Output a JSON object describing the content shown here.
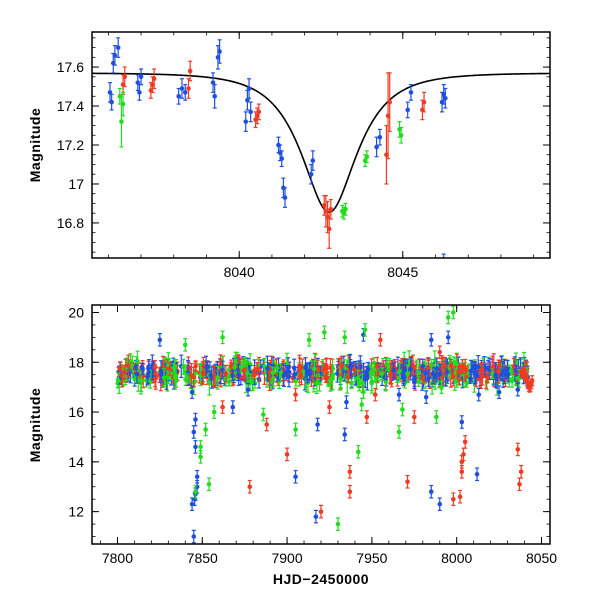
{
  "colors": {
    "blue": "#1f4fe0",
    "red": "#f03a23",
    "green": "#22dd1f",
    "model": "#000000"
  },
  "chart_data": [
    {
      "type": "scatter",
      "panel": "top",
      "xlabel": "",
      "ylabel": "Magnitude",
      "xlim": [
        8035.5,
        8049.5
      ],
      "ylim": [
        17.78,
        16.62
      ],
      "y_inverted": true,
      "x_ticks": [
        8040,
        8045
      ],
      "x_tick_labels": [
        "8040",
        "8045"
      ],
      "y_ticks": [
        16.8,
        17.0,
        17.2,
        17.4,
        17.6
      ],
      "y_tick_labels": [
        "16.8",
        "17",
        "17.2",
        "17.4",
        "17.6"
      ],
      "model_curve": {
        "baseline": 17.57,
        "peak_mag": 16.855,
        "t0": 8042.75,
        "tE": 1.35
      },
      "series": [
        {
          "color": "blue",
          "points": [
            [
              8036.05,
              17.47,
              0.05
            ],
            [
              8036.1,
              17.42,
              0.04
            ],
            [
              8036.15,
              17.62,
              0.05
            ],
            [
              8036.2,
              17.66,
              0.05
            ],
            [
              8036.3,
              17.7,
              0.05
            ],
            [
              8036.9,
              17.52,
              0.04
            ],
            [
              8036.95,
              17.47,
              0.04
            ],
            [
              8037.0,
              17.55,
              0.04
            ],
            [
              8038.15,
              17.45,
              0.04
            ],
            [
              8038.25,
              17.49,
              0.05
            ],
            [
              8038.35,
              17.47,
              0.04
            ],
            [
              8039.2,
              17.52,
              0.05
            ],
            [
              8039.25,
              17.45,
              0.06
            ],
            [
              8039.35,
              17.65,
              0.06
            ],
            [
              8039.4,
              17.68,
              0.06
            ],
            [
              8040.2,
              17.32,
              0.05
            ],
            [
              8040.25,
              17.43,
              0.05
            ],
            [
              8040.3,
              17.49,
              0.05
            ],
            [
              8040.35,
              17.37,
              0.05
            ],
            [
              8041.2,
              17.2,
              0.04
            ],
            [
              8041.25,
              17.16,
              0.04
            ],
            [
              8041.3,
              17.13,
              0.04
            ],
            [
              8041.35,
              16.98,
              0.05
            ],
            [
              8041.4,
              16.93,
              0.05
            ],
            [
              8042.2,
              17.05,
              0.05
            ],
            [
              8042.25,
              17.12,
              0.05
            ],
            [
              8044.2,
              17.19,
              0.05
            ],
            [
              8044.3,
              17.24,
              0.04
            ],
            [
              8045.15,
              17.38,
              0.04
            ],
            [
              8045.25,
              17.47,
              0.04
            ],
            [
              8046.2,
              17.42,
              0.05
            ],
            [
              8046.25,
              17.46,
              0.05
            ],
            [
              8046.3,
              17.44,
              0.05
            ]
          ]
        },
        {
          "color": "red",
          "points": [
            [
              8036.45,
              17.51,
              0.05
            ],
            [
              8036.5,
              17.55,
              0.05
            ],
            [
              8037.3,
              17.48,
              0.04
            ],
            [
              8037.35,
              17.51,
              0.04
            ],
            [
              8037.4,
              17.54,
              0.05
            ],
            [
              8038.45,
              17.49,
              0.05
            ],
            [
              8038.5,
              17.58,
              0.05
            ],
            [
              8040.5,
              17.33,
              0.04
            ],
            [
              8040.55,
              17.35,
              0.04
            ],
            [
              8040.6,
              17.37,
              0.04
            ],
            [
              8042.6,
              16.89,
              0.05
            ],
            [
              8042.65,
              16.86,
              0.08
            ],
            [
              8042.7,
              16.83,
              0.08
            ],
            [
              8042.75,
              16.77,
              0.1
            ],
            [
              8042.8,
              16.87,
              0.05
            ],
            [
              8044.5,
              17.15,
              0.15
            ],
            [
              8044.55,
              17.35,
              0.22
            ],
            [
              8044.6,
              17.42,
              0.15
            ],
            [
              8045.6,
              17.38,
              0.05
            ],
            [
              8045.65,
              17.42,
              0.05
            ]
          ]
        },
        {
          "color": "green",
          "points": [
            [
              8036.35,
              17.45,
              0.04
            ],
            [
              8036.4,
              17.32,
              0.13
            ],
            [
              8036.45,
              17.41,
              0.06
            ],
            [
              8043.15,
              16.86,
              0.03
            ],
            [
              8043.2,
              16.85,
              0.03
            ],
            [
              8043.25,
              16.87,
              0.03
            ],
            [
              8043.85,
              17.12,
              0.03
            ],
            [
              8043.9,
              17.14,
              0.03
            ],
            [
              8044.9,
              17.28,
              0.04
            ],
            [
              8044.95,
              17.25,
              0.04
            ]
          ]
        }
      ]
    },
    {
      "type": "scatter",
      "panel": "bottom",
      "xlabel": "HJD−2450000",
      "ylabel": "Magnitude",
      "xlim": [
        7785,
        8055
      ],
      "ylim": [
        20.3,
        10.7
      ],
      "y_inverted": true,
      "x_ticks": [
        7800,
        7850,
        7900,
        7950,
        8000,
        8050
      ],
      "x_tick_labels": [
        "7800",
        "7850",
        "7900",
        "7950",
        "8000",
        "8050"
      ],
      "y_ticks": [
        12,
        14,
        16,
        18,
        20
      ],
      "y_tick_labels": [
        "12",
        "14",
        "16",
        "18",
        "20"
      ],
      "baseline_mag": 17.6,
      "baseline_x_range": [
        7800,
        8042
      ],
      "series": [
        {
          "color": "blue",
          "outliers": [
            [
              7845,
              11.0
            ],
            [
              7844,
              12.3
            ],
            [
              7845.5,
              12.5
            ],
            [
              7846,
              12.7
            ],
            [
              7847,
              13.0
            ],
            [
              7847,
              13.4
            ],
            [
              7845,
              15.2
            ],
            [
              7846,
              14.6
            ],
            [
              7846,
              15.7
            ],
            [
              7844,
              16.8
            ],
            [
              7868,
              16.2
            ],
            [
              7877,
              16.9
            ],
            [
              7905,
              13.4
            ],
            [
              7917,
              11.8
            ],
            [
              7918,
              15.5
            ],
            [
              7934,
              15.1
            ],
            [
              7935,
              16.4
            ],
            [
              7985,
              12.8
            ],
            [
              7990,
              12.3
            ],
            [
              7966,
              16.7
            ],
            [
              7975,
              17.2
            ],
            [
              7982,
              16.6
            ],
            [
              7985,
              18.9
            ],
            [
              7995,
              19.0
            ],
            [
              8003,
              15.6
            ],
            [
              8012,
              13.5
            ],
            [
              8013,
              16.7
            ],
            [
              8025,
              16.8
            ],
            [
              8036,
              16.9
            ],
            [
              7825,
              18.9
            ],
            [
              7945,
              19.1
            ]
          ]
        },
        {
          "color": "red",
          "outliers": [
            [
              7878,
              13.0
            ],
            [
              7888,
              15.5
            ],
            [
              7900,
              14.3
            ],
            [
              7920,
              12.0
            ],
            [
              7937,
              12.8
            ],
            [
              7937,
              13.6
            ],
            [
              7947,
              15.8
            ],
            [
              7952,
              16.7
            ],
            [
              7971,
              13.2
            ],
            [
              7975,
              15.8
            ],
            [
              7998,
              12.5
            ],
            [
              8002,
              12.6
            ],
            [
              8003,
              13.6
            ],
            [
              8003,
              14.0
            ],
            [
              8004,
              14.3
            ],
            [
              8005,
              14.8
            ],
            [
              8037,
              13.1
            ],
            [
              8038,
              13.6
            ],
            [
              8036,
              14.5
            ],
            [
              7862,
              16.2
            ],
            [
              7905,
              16.7
            ],
            [
              7925,
              16.2
            ],
            [
              7955,
              18.9
            ],
            [
              7990,
              18.4
            ]
          ]
        },
        {
          "color": "green",
          "outliers": [
            [
              7846,
              12.8
            ],
            [
              7854,
              13.1
            ],
            [
              7849,
              14.2
            ],
            [
              7849,
              14.6
            ],
            [
              7852,
              15.3
            ],
            [
              7857,
              16.0
            ],
            [
              7886,
              15.9
            ],
            [
              7905,
              15.3
            ],
            [
              7930,
              11.5
            ],
            [
              7942,
              14.4
            ],
            [
              7944,
              16.3
            ],
            [
              7945,
              16.8
            ],
            [
              7966,
              15.2
            ],
            [
              7968,
              16.1
            ],
            [
              7988,
              15.8
            ],
            [
              7991,
              17.0
            ],
            [
              7995,
              19.8
            ],
            [
              7998,
              20.0
            ],
            [
              7840,
              18.7
            ],
            [
              7862,
              19.0
            ],
            [
              7913,
              18.9
            ],
            [
              7922,
              19.2
            ],
            [
              7934,
              19.0
            ],
            [
              7946,
              19.3
            ]
          ]
        }
      ]
    }
  ]
}
